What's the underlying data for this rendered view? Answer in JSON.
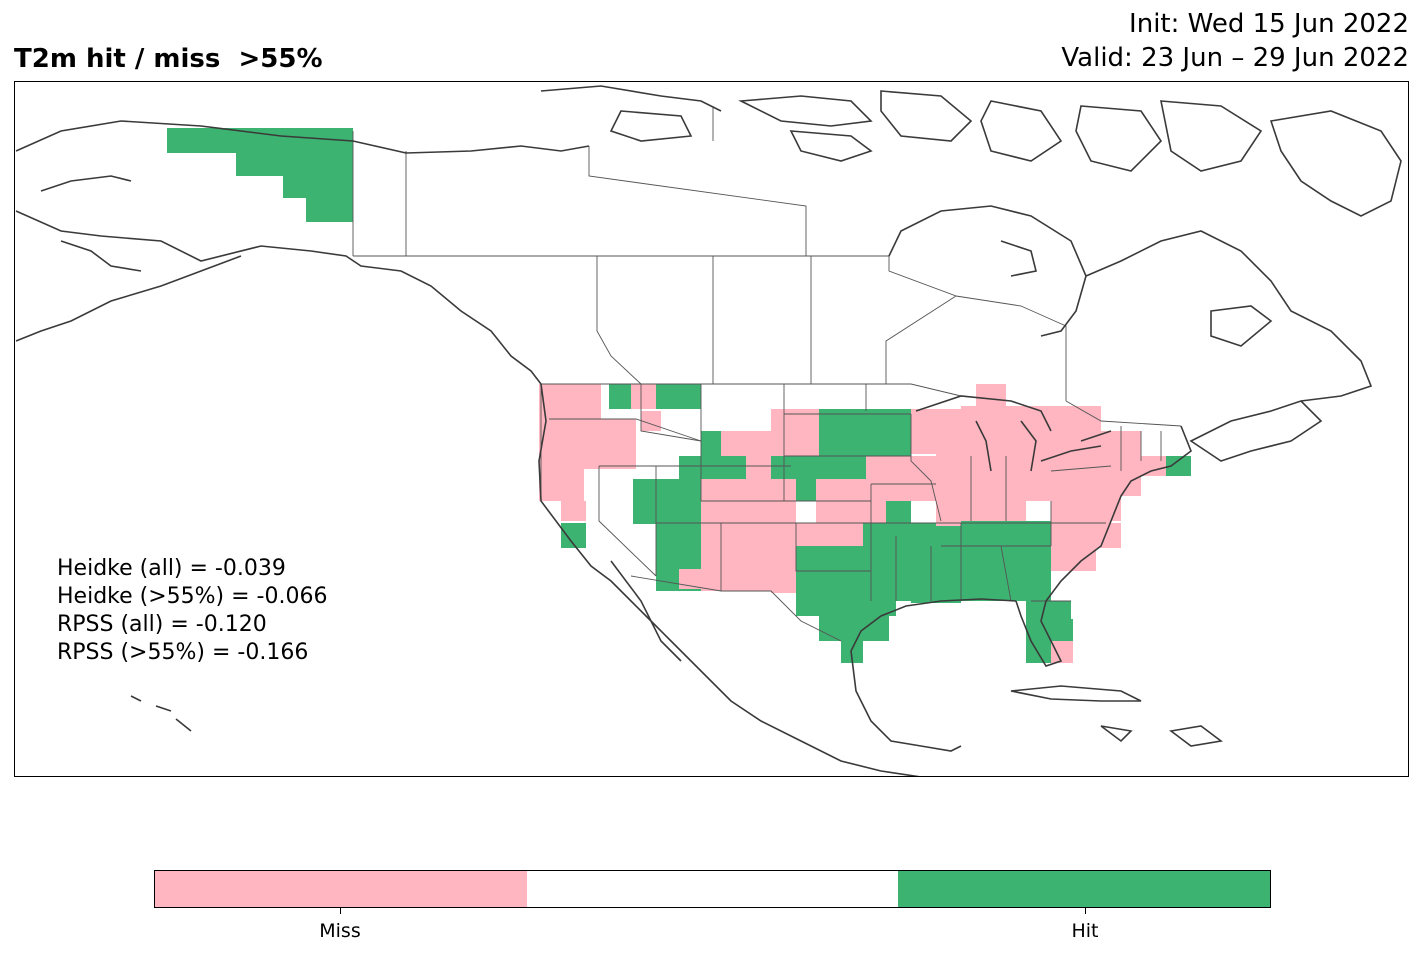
{
  "header": {
    "title": "T2m hit / miss  >55%",
    "init": "Init: Wed 15 Jun 2022",
    "valid": "Valid: 23 Jun – 29 Jun 2022"
  },
  "stats": [
    "Heidke (all) = -0.039",
    "Heidke (>55%) = -0.066",
    "RPSS (all) = -0.120",
    "RPSS (>55%) = -0.166"
  ],
  "colors": {
    "miss": "#ffb6c1",
    "neutral": "#ffffff",
    "hit": "#3cb371",
    "coast": "#3a3a3a",
    "border": "#555555"
  },
  "colorbar": {
    "segments": [
      "miss",
      "neutral",
      "hit"
    ],
    "labels": [
      "Miss",
      "Hit"
    ]
  }
}
